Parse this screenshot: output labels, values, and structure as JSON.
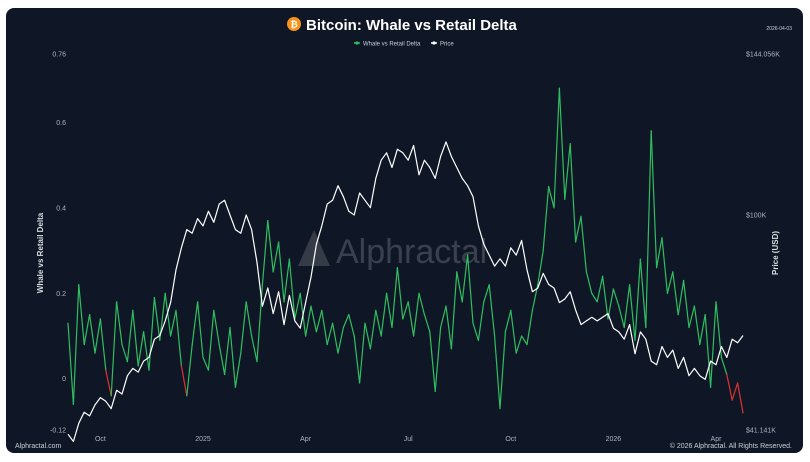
{
  "header": {
    "title": "Bitcoin: Whale vs Retail Delta",
    "date": "2026-04-03",
    "btc_icon_glyph": "₿"
  },
  "watermark": "Alphractal",
  "footer": {
    "left": "Alphractal.com",
    "right": "© 2026 Alphractal. All Rights Reserved."
  },
  "colors": {
    "background": "#0f1726",
    "delta_positive": "#2fbf5f",
    "delta_negative": "#e0332f",
    "price": "#ffffff",
    "btc_orange": "#f7931a"
  },
  "chart_data": {
    "type": "line",
    "legend_position": "top-center",
    "grid": false,
    "series": [
      {
        "name": "Whale vs Retail Delta",
        "axis": "left",
        "color_positive": "#2fbf5f",
        "color_negative": "#e0332f",
        "points": [
          [
            0,
            0.13
          ],
          [
            2,
            -0.06
          ],
          [
            4,
            0.22
          ],
          [
            6,
            0.08
          ],
          [
            8,
            0.15
          ],
          [
            10,
            0.06
          ],
          [
            12,
            0.14
          ],
          [
            14,
            0.02
          ],
          [
            16,
            -0.04
          ],
          [
            18,
            0.18
          ],
          [
            20,
            0.08
          ],
          [
            22,
            0.04
          ],
          [
            24,
            0.16
          ],
          [
            26,
            0.03
          ],
          [
            28,
            0.11
          ],
          [
            30,
            0.02
          ],
          [
            32,
            0.19
          ],
          [
            34,
            0.09
          ],
          [
            36,
            0.2
          ],
          [
            38,
            0.1
          ],
          [
            40,
            0.16
          ],
          [
            42,
            0.03
          ],
          [
            44,
            -0.04
          ],
          [
            46,
            0.08
          ],
          [
            48,
            0.18
          ],
          [
            50,
            0.05
          ],
          [
            52,
            0.02
          ],
          [
            54,
            0.16
          ],
          [
            56,
            0.08
          ],
          [
            58,
            0.01
          ],
          [
            60,
            0.12
          ],
          [
            62,
            -0.02
          ],
          [
            64,
            0.06
          ],
          [
            66,
            0.18
          ],
          [
            68,
            0.1
          ],
          [
            70,
            0.04
          ],
          [
            72,
            0.22
          ],
          [
            74,
            0.37
          ],
          [
            76,
            0.25
          ],
          [
            78,
            0.32
          ],
          [
            80,
            0.18
          ],
          [
            82,
            0.28
          ],
          [
            84,
            0.14
          ],
          [
            86,
            0.2
          ],
          [
            88,
            0.1
          ],
          [
            90,
            0.17
          ],
          [
            92,
            0.11
          ],
          [
            94,
            0.16
          ],
          [
            96,
            0.08
          ],
          [
            98,
            0.13
          ],
          [
            100,
            0.06
          ],
          [
            102,
            0.12
          ],
          [
            104,
            0.15
          ],
          [
            106,
            0.1
          ],
          [
            108,
            -0.01
          ],
          [
            110,
            0.13
          ],
          [
            112,
            0.07
          ],
          [
            114,
            0.16
          ],
          [
            116,
            0.1
          ],
          [
            118,
            0.2
          ],
          [
            120,
            0.12
          ],
          [
            122,
            0.26
          ],
          [
            124,
            0.14
          ],
          [
            126,
            0.18
          ],
          [
            128,
            0.1
          ],
          [
            130,
            0.2
          ],
          [
            132,
            0.15
          ],
          [
            134,
            0.11
          ],
          [
            136,
            -0.03
          ],
          [
            138,
            0.12
          ],
          [
            140,
            0.17
          ],
          [
            142,
            0.07
          ],
          [
            144,
            0.25
          ],
          [
            146,
            0.18
          ],
          [
            148,
            0.29
          ],
          [
            150,
            0.13
          ],
          [
            152,
            0.09
          ],
          [
            154,
            0.18
          ],
          [
            156,
            0.22
          ],
          [
            158,
            0.1
          ],
          [
            160,
            -0.07
          ],
          [
            162,
            0.11
          ],
          [
            164,
            0.16
          ],
          [
            166,
            0.06
          ],
          [
            168,
            0.1
          ],
          [
            170,
            0.08
          ],
          [
            172,
            0.16
          ],
          [
            174,
            0.22
          ],
          [
            176,
            0.3
          ],
          [
            178,
            0.45
          ],
          [
            180,
            0.4
          ],
          [
            182,
            0.68
          ],
          [
            184,
            0.42
          ],
          [
            186,
            0.55
          ],
          [
            188,
            0.32
          ],
          [
            190,
            0.38
          ],
          [
            192,
            0.25
          ],
          [
            194,
            0.2
          ],
          [
            196,
            0.18
          ],
          [
            198,
            0.24
          ],
          [
            200,
            0.14
          ],
          [
            202,
            0.21
          ],
          [
            204,
            0.17
          ],
          [
            206,
            0.12
          ],
          [
            208,
            0.22
          ],
          [
            210,
            0.09
          ],
          [
            212,
            0.28
          ],
          [
            214,
            0.12
          ],
          [
            216,
            0.58
          ],
          [
            218,
            0.26
          ],
          [
            220,
            0.33
          ],
          [
            222,
            0.2
          ],
          [
            224,
            0.25
          ],
          [
            226,
            0.15
          ],
          [
            228,
            0.23
          ],
          [
            230,
            0.12
          ],
          [
            232,
            0.17
          ],
          [
            234,
            0.08
          ],
          [
            236,
            0.15
          ],
          [
            238,
            -0.02
          ],
          [
            240,
            0.18
          ],
          [
            242,
            0.05
          ],
          [
            244,
            0.01
          ],
          [
            246,
            -0.05
          ],
          [
            248,
            -0.01
          ],
          [
            250,
            -0.08
          ]
        ]
      },
      {
        "name": "Price",
        "axis": "right",
        "color": "#ffffff",
        "points": [
          [
            0,
            40
          ],
          [
            2,
            38
          ],
          [
            4,
            43
          ],
          [
            6,
            46
          ],
          [
            8,
            45
          ],
          [
            10,
            48
          ],
          [
            12,
            50
          ],
          [
            14,
            49
          ],
          [
            16,
            47
          ],
          [
            18,
            52
          ],
          [
            20,
            51
          ],
          [
            22,
            56
          ],
          [
            24,
            58
          ],
          [
            26,
            57
          ],
          [
            28,
            60
          ],
          [
            30,
            61
          ],
          [
            32,
            66
          ],
          [
            34,
            67
          ],
          [
            36,
            71
          ],
          [
            38,
            76
          ],
          [
            40,
            85
          ],
          [
            42,
            91
          ],
          [
            44,
            96
          ],
          [
            46,
            95
          ],
          [
            48,
            99
          ],
          [
            50,
            97
          ],
          [
            52,
            101
          ],
          [
            54,
            98
          ],
          [
            56,
            103
          ],
          [
            58,
            104
          ],
          [
            60,
            100
          ],
          [
            62,
            96
          ],
          [
            64,
            95
          ],
          [
            66,
            100
          ],
          [
            68,
            96
          ],
          [
            70,
            87
          ],
          [
            72,
            75
          ],
          [
            74,
            80
          ],
          [
            76,
            73
          ],
          [
            78,
            79
          ],
          [
            80,
            70
          ],
          [
            82,
            78
          ],
          [
            84,
            71
          ],
          [
            86,
            69
          ],
          [
            88,
            76
          ],
          [
            90,
            83
          ],
          [
            92,
            92
          ],
          [
            94,
            97
          ],
          [
            96,
            103
          ],
          [
            98,
            104
          ],
          [
            100,
            108
          ],
          [
            102,
            105
          ],
          [
            104,
            101
          ],
          [
            106,
            100
          ],
          [
            108,
            106
          ],
          [
            110,
            104
          ],
          [
            112,
            102
          ],
          [
            114,
            110
          ],
          [
            116,
            115
          ],
          [
            118,
            117
          ],
          [
            120,
            113
          ],
          [
            122,
            118
          ],
          [
            124,
            117
          ],
          [
            126,
            115
          ],
          [
            128,
            119
          ],
          [
            130,
            111
          ],
          [
            132,
            115
          ],
          [
            134,
            113
          ],
          [
            136,
            110
          ],
          [
            138,
            116
          ],
          [
            140,
            120
          ],
          [
            142,
            116
          ],
          [
            144,
            113
          ],
          [
            146,
            110
          ],
          [
            148,
            108
          ],
          [
            150,
            105
          ],
          [
            152,
            97
          ],
          [
            154,
            92
          ],
          [
            156,
            89
          ],
          [
            158,
            86
          ],
          [
            160,
            88
          ],
          [
            162,
            86
          ],
          [
            164,
            91
          ],
          [
            166,
            89
          ],
          [
            168,
            93
          ],
          [
            170,
            85
          ],
          [
            172,
            79
          ],
          [
            174,
            80
          ],
          [
            176,
            84
          ],
          [
            178,
            81
          ],
          [
            180,
            80
          ],
          [
            182,
            76
          ],
          [
            184,
            77
          ],
          [
            186,
            79
          ],
          [
            188,
            74
          ],
          [
            190,
            70
          ],
          [
            192,
            71
          ],
          [
            194,
            72
          ],
          [
            196,
            71
          ],
          [
            198,
            72
          ],
          [
            200,
            73
          ],
          [
            202,
            69
          ],
          [
            204,
            68
          ],
          [
            206,
            66
          ],
          [
            208,
            70
          ],
          [
            210,
            62
          ],
          [
            212,
            68
          ],
          [
            214,
            66
          ],
          [
            216,
            60
          ],
          [
            218,
            59
          ],
          [
            220,
            64
          ],
          [
            222,
            61
          ],
          [
            224,
            63
          ],
          [
            226,
            58
          ],
          [
            228,
            61
          ],
          [
            230,
            56
          ],
          [
            232,
            58
          ],
          [
            234,
            56
          ],
          [
            236,
            55
          ],
          [
            238,
            60
          ],
          [
            240,
            59
          ],
          [
            242,
            64
          ],
          [
            244,
            61
          ],
          [
            246,
            66
          ],
          [
            248,
            65
          ],
          [
            250,
            67
          ]
        ]
      }
    ],
    "y_left": {
      "label": "Whale vs Retail Delta",
      "lim": [
        -0.12,
        0.76
      ],
      "ticks": [
        "0.76",
        "0.6",
        "0.4",
        "0.2",
        "0",
        "-0.12"
      ],
      "tick_values": [
        0.76,
        0.6,
        0.4,
        0.2,
        0,
        -0.12
      ]
    },
    "y_right": {
      "label": "Price (USD)",
      "lim": [
        41.141,
        144.056
      ],
      "ticks": [
        "$144.056K",
        "$100K",
        "$41.141K"
      ],
      "tick_values": [
        144.056,
        100,
        41.141
      ]
    },
    "x": {
      "lim": [
        0,
        250
      ],
      "ticks": [
        {
          "label": "Oct",
          "pos": 12
        },
        {
          "label": "2025",
          "pos": 50
        },
        {
          "label": "Apr",
          "pos": 88
        },
        {
          "label": "Jul",
          "pos": 126
        },
        {
          "label": "Oct",
          "pos": 164
        },
        {
          "label": "2026",
          "pos": 202
        },
        {
          "label": "Apr",
          "pos": 240
        }
      ]
    }
  }
}
